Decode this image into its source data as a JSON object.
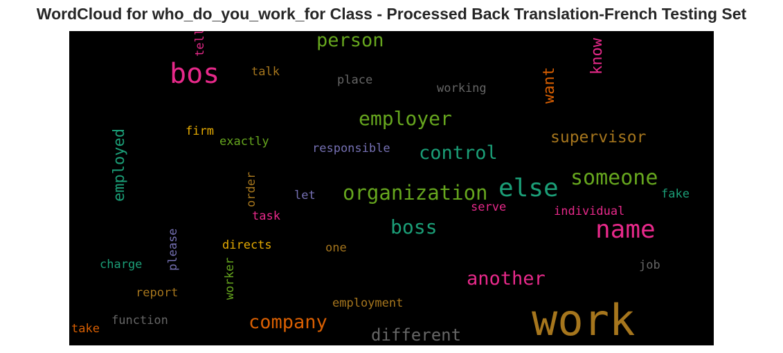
{
  "title": "WordCloud for who_do_you_work_for Class - Processed Back Translation-French Testing Set",
  "colors": {
    "background": "#000000",
    "title": "#262626"
  },
  "chart_data": {
    "type": "wordcloud",
    "words": [
      {
        "text": "work",
        "color": "#a6761d"
      },
      {
        "text": "bos",
        "color": "#e7298a"
      },
      {
        "text": "name",
        "color": "#e7298a"
      },
      {
        "text": "else",
        "color": "#1b9e77"
      },
      {
        "text": "organization",
        "color": "#66a61e"
      },
      {
        "text": "someone",
        "color": "#66a61e"
      },
      {
        "text": "person",
        "color": "#66a61e"
      },
      {
        "text": "employer",
        "color": "#66a61e"
      },
      {
        "text": "control",
        "color": "#1b9e77"
      },
      {
        "text": "company",
        "color": "#d95f02"
      },
      {
        "text": "another",
        "color": "#e7298a"
      },
      {
        "text": "boss",
        "color": "#1b9e77"
      },
      {
        "text": "different",
        "color": "#666666"
      },
      {
        "text": "employed",
        "color": "#1b9e77"
      },
      {
        "text": "supervisor",
        "color": "#a6761d"
      },
      {
        "text": "know",
        "color": "#e7298a"
      },
      {
        "text": "want",
        "color": "#d95f02"
      },
      {
        "text": "talk",
        "color": "#a6761d"
      },
      {
        "text": "place",
        "color": "#666666"
      },
      {
        "text": "working",
        "color": "#666666"
      },
      {
        "text": "tell",
        "color": "#e7298a"
      },
      {
        "text": "firm",
        "color": "#e6ab02"
      },
      {
        "text": "exactly",
        "color": "#66a61e"
      },
      {
        "text": "responsible",
        "color": "#7570b3"
      },
      {
        "text": "order",
        "color": "#a6761d"
      },
      {
        "text": "let",
        "color": "#7570b3"
      },
      {
        "text": "fake",
        "color": "#1b9e77"
      },
      {
        "text": "serve",
        "color": "#e7298a"
      },
      {
        "text": "individual",
        "color": "#e7298a"
      },
      {
        "text": "task",
        "color": "#e7298a"
      },
      {
        "text": "please",
        "color": "#7570b3"
      },
      {
        "text": "directs",
        "color": "#e6ab02"
      },
      {
        "text": "one",
        "color": "#a6761d"
      },
      {
        "text": "charge",
        "color": "#1b9e77"
      },
      {
        "text": "worker",
        "color": "#66a61e"
      },
      {
        "text": "job",
        "color": "#666666"
      },
      {
        "text": "report",
        "color": "#a6761d"
      },
      {
        "text": "employment",
        "color": "#a6761d"
      },
      {
        "text": "take",
        "color": "#d95f02"
      },
      {
        "text": "function",
        "color": "#666666"
      }
    ]
  }
}
